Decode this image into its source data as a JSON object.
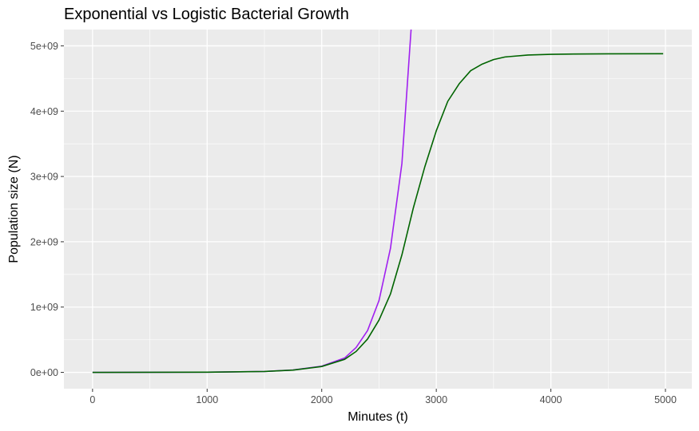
{
  "chart_data": {
    "type": "line",
    "title": "Exponential vs Logistic Bacterial Growth",
    "xlabel": "Minutes (t)",
    "ylabel": "Population size (N)",
    "xlim": [
      -250,
      5230
    ],
    "ylim": [
      -250000000,
      5250000000
    ],
    "x_ticks": [
      0,
      1000,
      2000,
      3000,
      4000,
      5000
    ],
    "x_tick_labels": [
      "0",
      "1000",
      "2000",
      "3000",
      "4000",
      "5000"
    ],
    "y_ticks": [
      0,
      1000000000,
      2000000000,
      3000000000,
      4000000000,
      5000000000
    ],
    "y_tick_labels": [
      "0e+00",
      "1e+09",
      "2e+09",
      "3e+09",
      "4e+09",
      "5e+09"
    ],
    "grid": true,
    "legend": "none",
    "colors": {
      "panel": "#ebebeb",
      "grid": "#ffffff"
    },
    "series": [
      {
        "color": "#a020f0",
        "x": [
          0,
          1000,
          1500,
          1750,
          2000,
          2200,
          2300,
          2400,
          2500,
          2600,
          2700,
          2780
        ],
        "y": [
          100000,
          2500000,
          14000000,
          36000000,
          95000000,
          220000000,
          380000000,
          640000000,
          1100000000,
          1900000000,
          3200000000,
          5250000000
        ]
      },
      {
        "color": "#006400",
        "x": [
          0,
          1000,
          1500,
          1750,
          2000,
          2200,
          2300,
          2400,
          2500,
          2600,
          2700,
          2800,
          2900,
          3000,
          3100,
          3200,
          3300,
          3400,
          3500,
          3600,
          3800,
          4000,
          4200,
          4500,
          4980
        ],
        "y": [
          100000,
          2500000,
          14000000,
          35000000,
          90000000,
          200000000,
          320000000,
          510000000,
          800000000,
          1200000000,
          1800000000,
          2520000000,
          3150000000,
          3700000000,
          4150000000,
          4420000000,
          4620000000,
          4720000000,
          4790000000,
          4830000000,
          4860000000,
          4870000000,
          4875000000,
          4878000000,
          4880000000
        ]
      }
    ]
  }
}
